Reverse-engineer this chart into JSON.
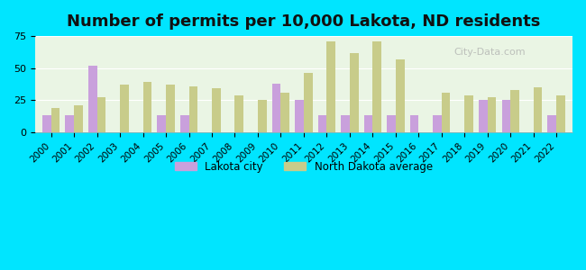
{
  "title": "Number of permits per 10,000 Lakota, ND residents",
  "years": [
    2000,
    2001,
    2002,
    2003,
    2004,
    2005,
    2006,
    2007,
    2008,
    2009,
    2010,
    2011,
    2012,
    2013,
    2014,
    2015,
    2016,
    2017,
    2018,
    2019,
    2020,
    2021,
    2022
  ],
  "lakota": [
    13,
    13,
    52,
    0,
    0,
    13,
    13,
    0,
    0,
    0,
    38,
    25,
    13,
    13,
    13,
    13,
    13,
    13,
    0,
    25,
    25,
    0,
    13
  ],
  "nd_avg": [
    19,
    21,
    27,
    37,
    39,
    37,
    36,
    34,
    29,
    25,
    31,
    46,
    71,
    62,
    71,
    57,
    0,
    31,
    29,
    27,
    33,
    35,
    29
  ],
  "lakota_color": "#c9a0dc",
  "nd_avg_color": "#c8cc8a",
  "plot_bg": "#eaf5e4",
  "outer_bg": "#00e5ff",
  "ylim": [
    0,
    75
  ],
  "yticks": [
    0,
    25,
    50,
    75
  ],
  "title_fontsize": 13,
  "bar_width": 0.38
}
